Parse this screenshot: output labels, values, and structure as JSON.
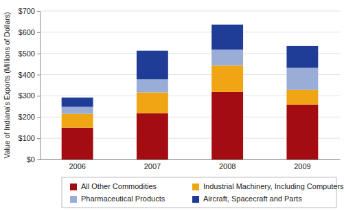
{
  "chart_data": {
    "type": "bar",
    "stacked": true,
    "grid": true,
    "legend": "bottom",
    "y_label": "Value of Indiana's Exports (Millions of Dollars)",
    "categories": [
      "2006",
      "2007",
      "2008",
      "2009"
    ],
    "series": [
      {
        "name": "All Other Commodities",
        "color": "#a30d12",
        "values": [
          150,
          218,
          318,
          258
        ]
      },
      {
        "name": "Industrial Machinery, Including Computers",
        "color": "#f0a514",
        "values": [
          65,
          98,
          125,
          70
        ]
      },
      {
        "name": "Pharmaceutical Products",
        "color": "#9aadd6",
        "values": [
          33,
          62,
          75,
          104
        ]
      },
      {
        "name": "Aircraft, Spacecraft and Parts",
        "color": "#1f3c96",
        "values": [
          44,
          135,
          118,
          103
        ]
      }
    ],
    "ylim": [
      0,
      700
    ],
    "yticks": [
      {
        "value": 0,
        "label": "$0"
      },
      {
        "value": 100,
        "label": "$100"
      },
      {
        "value": 200,
        "label": "$200"
      },
      {
        "value": 300,
        "label": "$300"
      },
      {
        "value": 400,
        "label": "$400"
      },
      {
        "value": 500,
        "label": "$500"
      },
      {
        "value": 600,
        "label": "$600"
      },
      {
        "value": 700,
        "label": "$700"
      }
    ]
  }
}
